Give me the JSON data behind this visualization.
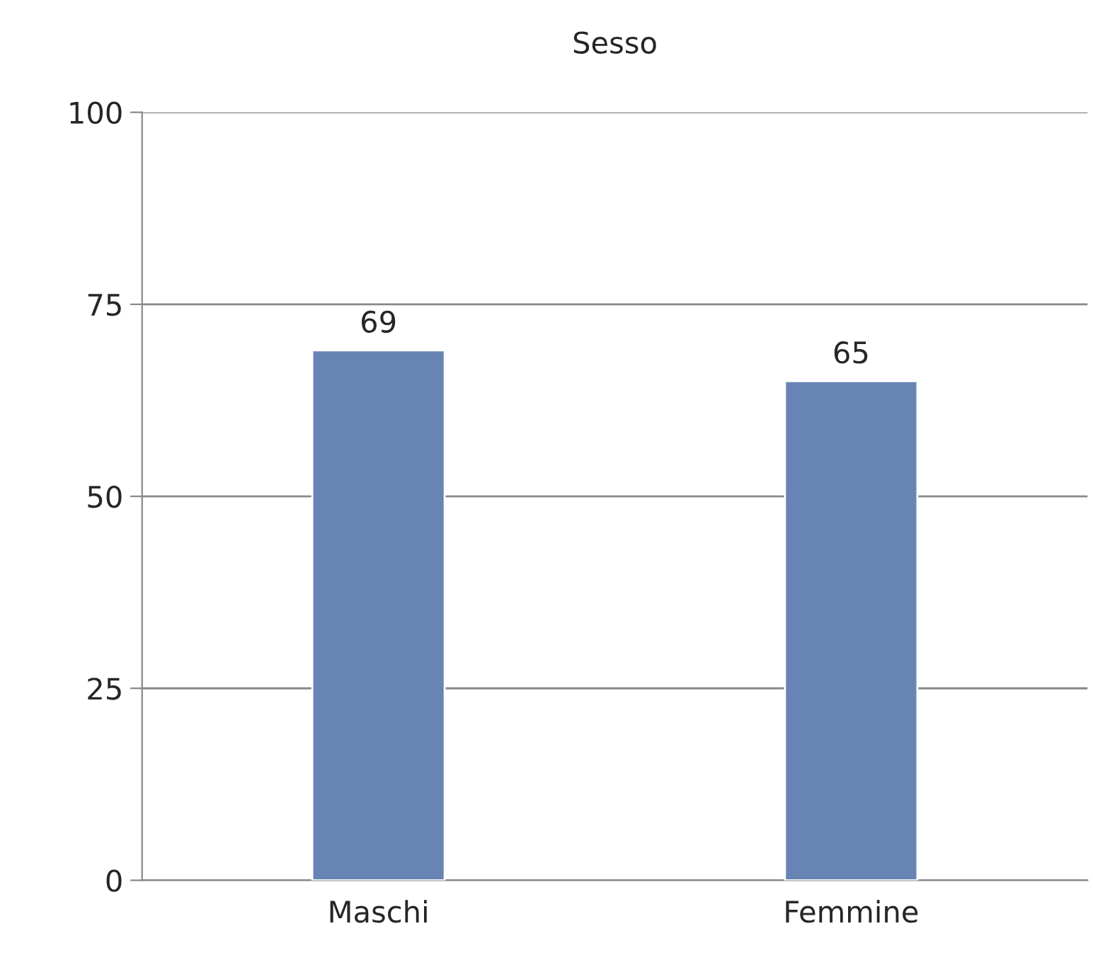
{
  "chart_data": {
    "type": "bar",
    "title": "Sesso",
    "categories": [
      "Maschi",
      "Femmine"
    ],
    "values": [
      69,
      65
    ],
    "color": "#6784b4",
    "ylim": [
      0,
      100
    ],
    "yticks": [
      0,
      25,
      50,
      75,
      100
    ],
    "grid": "y",
    "data_labels": true
  }
}
